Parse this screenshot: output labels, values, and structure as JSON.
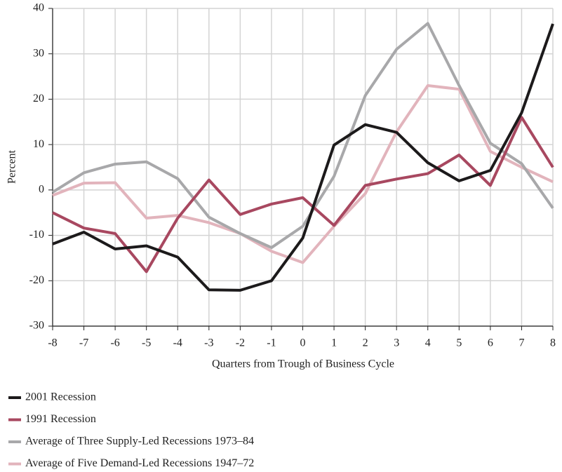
{
  "chart_data": {
    "type": "line",
    "x_label": "Quarters from Trough of Business Cycle",
    "y_label": "Percent",
    "x": [
      -8,
      -7,
      -6,
      -5,
      -4,
      -3,
      -2,
      -1,
      0,
      1,
      2,
      3,
      4,
      5,
      6,
      7,
      8
    ],
    "xlim": [
      -8,
      8
    ],
    "xticks": [
      -8,
      -7,
      -6,
      -5,
      -4,
      -3,
      -2,
      -1,
      0,
      1,
      2,
      3,
      4,
      5,
      6,
      7,
      8
    ],
    "ylim": [
      -30,
      40
    ],
    "yticks": [
      -30,
      -20,
      -10,
      0,
      10,
      20,
      30,
      40
    ],
    "grid": true,
    "legend": "bottom-left",
    "series": [
      {
        "name": "2001 Recession",
        "color": "#1c1a1b",
        "values": [
          -11.9,
          -9.3,
          -13,
          -12.3,
          -14.8,
          -22,
          -22.1,
          -20,
          -10.6,
          9.9,
          14.4,
          12.7,
          6,
          2,
          4.3,
          17,
          36.6
        ]
      },
      {
        "name": "1991 Recession",
        "color": "#a84860",
        "values": [
          -5,
          -8.4,
          -9.6,
          -18,
          -6.2,
          2.2,
          -5.4,
          -3.1,
          -1.7,
          -7.8,
          1,
          2.4,
          3.6,
          7.7,
          1,
          16,
          5
        ]
      },
      {
        "name": "Average of Three Supply-Led Recessions 1973–84",
        "color": "#a8a8aa",
        "values": [
          -0.5,
          3.8,
          5.7,
          6.2,
          2.5,
          -6,
          -9.6,
          -12.7,
          -8,
          3,
          20.8,
          31,
          36.7,
          23,
          10.3,
          5.8,
          -4
        ]
      },
      {
        "name": "Average of Five Demand-Led Recessions 1947–72",
        "color": "#e2b4bc",
        "values": [
          -1.2,
          1.5,
          1.6,
          -6.2,
          -5.6,
          -7.2,
          -9.6,
          -13.5,
          -16,
          -8,
          -0.8,
          12.8,
          23,
          22.2,
          8.5,
          5,
          1.8
        ]
      }
    ]
  }
}
